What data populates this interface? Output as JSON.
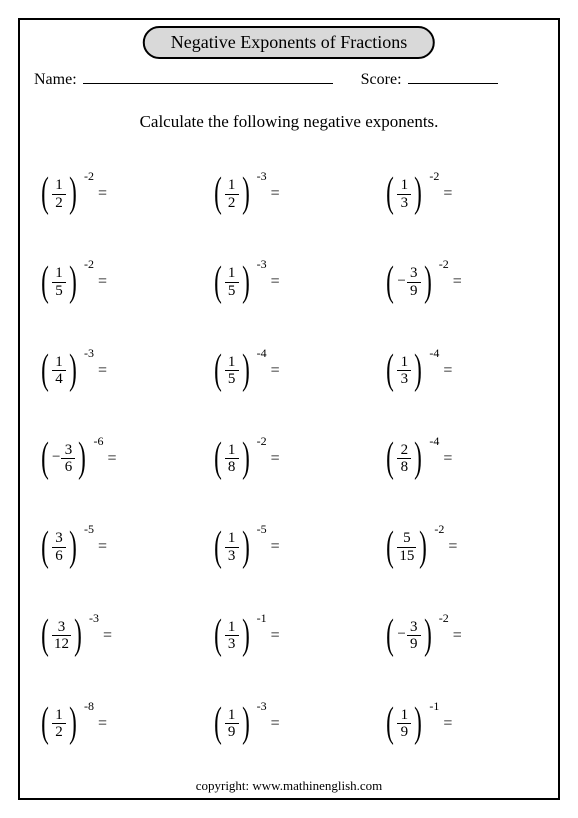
{
  "title": "Negative Exponents of Fractions",
  "labels": {
    "name": "Name:",
    "score": "Score:"
  },
  "instruction": "Calculate the following negative exponents.",
  "copyright": "copyright:   www.mathinenglish.com",
  "style": {
    "page_bg": "#ffffff",
    "title_bg": "#d9d9d9",
    "text_color": "#000000",
    "grid_cols": 3,
    "grid_rows": 7
  },
  "problems": [
    {
      "numerator": "1",
      "denominator": "2",
      "exponent": "-2",
      "negative": false
    },
    {
      "numerator": "1",
      "denominator": "2",
      "exponent": "-3",
      "negative": false
    },
    {
      "numerator": "1",
      "denominator": "3",
      "exponent": "-2",
      "negative": false
    },
    {
      "numerator": "1",
      "denominator": "5",
      "exponent": "-2",
      "negative": false
    },
    {
      "numerator": "1",
      "denominator": "5",
      "exponent": "-3",
      "negative": false
    },
    {
      "numerator": "3",
      "denominator": "9",
      "exponent": "-2",
      "negative": true
    },
    {
      "numerator": "1",
      "denominator": "4",
      "exponent": "-3",
      "negative": false
    },
    {
      "numerator": "1",
      "denominator": "5",
      "exponent": "-4",
      "negative": false
    },
    {
      "numerator": "1",
      "denominator": "3",
      "exponent": "-4",
      "negative": false
    },
    {
      "numerator": "3",
      "denominator": "6",
      "exponent": "-6",
      "negative": true
    },
    {
      "numerator": "1",
      "denominator": "8",
      "exponent": "-2",
      "negative": false
    },
    {
      "numerator": "2",
      "denominator": "8",
      "exponent": "-4",
      "negative": false
    },
    {
      "numerator": "3",
      "denominator": "6",
      "exponent": "-5",
      "negative": false
    },
    {
      "numerator": "1",
      "denominator": "3",
      "exponent": "-5",
      "negative": false
    },
    {
      "numerator": "5",
      "denominator": "15",
      "exponent": "-2",
      "negative": false
    },
    {
      "numerator": "3",
      "denominator": "12",
      "exponent": "-3",
      "negative": false
    },
    {
      "numerator": "1",
      "denominator": "3",
      "exponent": "-1",
      "negative": false
    },
    {
      "numerator": "3",
      "denominator": "9",
      "exponent": "-2",
      "negative": true
    },
    {
      "numerator": "1",
      "denominator": "2",
      "exponent": "-8",
      "negative": false
    },
    {
      "numerator": "1",
      "denominator": "9",
      "exponent": "-3",
      "negative": false
    },
    {
      "numerator": "1",
      "denominator": "9",
      "exponent": "-1",
      "negative": false
    }
  ]
}
